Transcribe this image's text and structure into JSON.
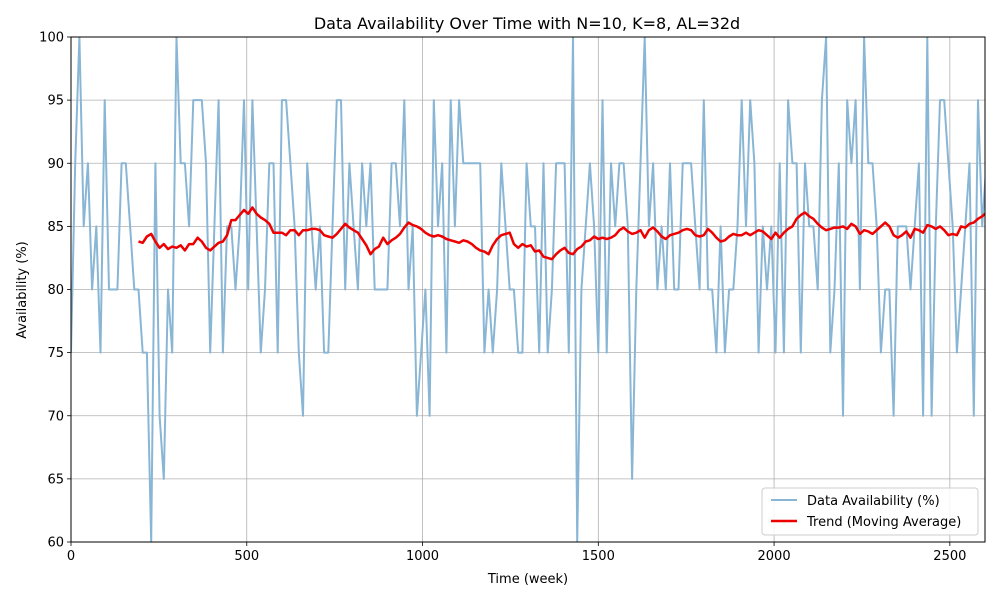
{
  "chart_data": {
    "type": "line",
    "title": "Data Availability Over Time with N=10, K=8, AL=32d",
    "xlabel": "Time (week)",
    "ylabel": "Availability (%)",
    "xlim": [
      0,
      2600
    ],
    "ylim": [
      60,
      100
    ],
    "xticks": [
      0,
      500,
      1000,
      1500,
      2000,
      2500
    ],
    "yticks": [
      60,
      65,
      70,
      75,
      80,
      85,
      90,
      95,
      100
    ],
    "grid": true,
    "legend_position": "bottom-right",
    "series": [
      {
        "name": "Data Availability (%)",
        "color": "#8ab6d6",
        "values": [
          75,
          90,
          100,
          85,
          90,
          80,
          85,
          75,
          95,
          80,
          80,
          80,
          90,
          90,
          85,
          80,
          80,
          75,
          75,
          60,
          90,
          70,
          65,
          80,
          75,
          100,
          90,
          90,
          85,
          95,
          95,
          95,
          90,
          75,
          85,
          95,
          75,
          85,
          85,
          80,
          85,
          95,
          80,
          95,
          85,
          75,
          80,
          90,
          90,
          75,
          95,
          95,
          90,
          85,
          75,
          70,
          90,
          85,
          80,
          85,
          75,
          75,
          85,
          95,
          95,
          80,
          90,
          85,
          80,
          90,
          85,
          90,
          80,
          80,
          80,
          80,
          90,
          90,
          85,
          95,
          80,
          85,
          70,
          75,
          80,
          70,
          95,
          85,
          90,
          75,
          95,
          85,
          95,
          90,
          90,
          90,
          90,
          90,
          75,
          80,
          75,
          80,
          90,
          85,
          80,
          80,
          75,
          75,
          90,
          85,
          85,
          75,
          90,
          75,
          80,
          90,
          90,
          90,
          75,
          100,
          60,
          80,
          85,
          90,
          85,
          75,
          95,
          75,
          90,
          85,
          90,
          90,
          85,
          65,
          80,
          90,
          100,
          85,
          90,
          80,
          85,
          80,
          90,
          80,
          80,
          90,
          90,
          90,
          85,
          80,
          95,
          80,
          80,
          75,
          85,
          75,
          80,
          80,
          85,
          95,
          85,
          95,
          90,
          75,
          85,
          80,
          85,
          75,
          90,
          75,
          95,
          90,
          90,
          75,
          90,
          85,
          85,
          80,
          95,
          100,
          75,
          80,
          90,
          70,
          95,
          90,
          95,
          80,
          100,
          90,
          90,
          85,
          75,
          80,
          80,
          70,
          85,
          85,
          85,
          80,
          85,
          90,
          70,
          100,
          70,
          85,
          95,
          95,
          90,
          85,
          75,
          80,
          85,
          90,
          70,
          95,
          85,
          90
        ]
      },
      {
        "name": "Trend (Moving Average)",
        "color": "#ee0000",
        "values": [
          83.8,
          83.7,
          84.2,
          84.4,
          83.8,
          83.3,
          83.6,
          83.2,
          83.4,
          83.3,
          83.5,
          83.1,
          83.6,
          83.6,
          84.1,
          83.8,
          83.3,
          83.1,
          83.4,
          83.7,
          83.8,
          84.3,
          85.5,
          85.5,
          85.9,
          86.3,
          86.0,
          86.5,
          86.0,
          85.7,
          85.5,
          85.2,
          84.5,
          84.5,
          84.5,
          84.3,
          84.7,
          84.7,
          84.3,
          84.7,
          84.7,
          84.8,
          84.8,
          84.7,
          84.3,
          84.2,
          84.1,
          84.4,
          84.8,
          85.2,
          84.9,
          84.7,
          84.5,
          84.0,
          83.5,
          82.8,
          83.2,
          83.4,
          84.1,
          83.6,
          83.9,
          84.1,
          84.4,
          84.9,
          85.3,
          85.1,
          85.0,
          84.8,
          84.5,
          84.3,
          84.2,
          84.3,
          84.2,
          84.0,
          83.9,
          83.8,
          83.7,
          83.9,
          83.8,
          83.6,
          83.3,
          83.1,
          83.0,
          82.8,
          83.5,
          84.0,
          84.3,
          84.4,
          84.5,
          83.6,
          83.3,
          83.6,
          83.4,
          83.5,
          83.0,
          83.1,
          82.6,
          82.5,
          82.4,
          82.8,
          83.1,
          83.3,
          82.9,
          82.8,
          83.2,
          83.4,
          83.8,
          83.9,
          84.2,
          84.0,
          84.1,
          84.0,
          84.1,
          84.3,
          84.7,
          84.9,
          84.6,
          84.4,
          84.5,
          84.7,
          84.1,
          84.7,
          84.9,
          84.6,
          84.2,
          84.0,
          84.3,
          84.4,
          84.5,
          84.7,
          84.8,
          84.7,
          84.3,
          84.2,
          84.3,
          84.8,
          84.5,
          84.1,
          83.8,
          83.9,
          84.2,
          84.4,
          84.3,
          84.3,
          84.5,
          84.3,
          84.5,
          84.7,
          84.6,
          84.3,
          84.0,
          84.5,
          84.1,
          84.5,
          84.8,
          85.0,
          85.6,
          85.9,
          86.1,
          85.8,
          85.6,
          85.2,
          84.9,
          84.7,
          84.8,
          84.9,
          84.9,
          85.0,
          84.8,
          85.2,
          85.0,
          84.4,
          84.7,
          84.6,
          84.4,
          84.7,
          85.0,
          85.3,
          85.0,
          84.3,
          84.1,
          84.3,
          84.6,
          84.1,
          84.8,
          84.7,
          84.5,
          85.1,
          85.0,
          84.8,
          85.0,
          84.7,
          84.3,
          84.4,
          84.3,
          85.0,
          84.9,
          85.2,
          85.3,
          85.6,
          85.8,
          86.1
        ]
      }
    ],
    "series_x": [
      {
        "x_start": 0,
        "x_step": 12
      },
      {
        "x_start": 192,
        "x_step": 12
      }
    ]
  }
}
